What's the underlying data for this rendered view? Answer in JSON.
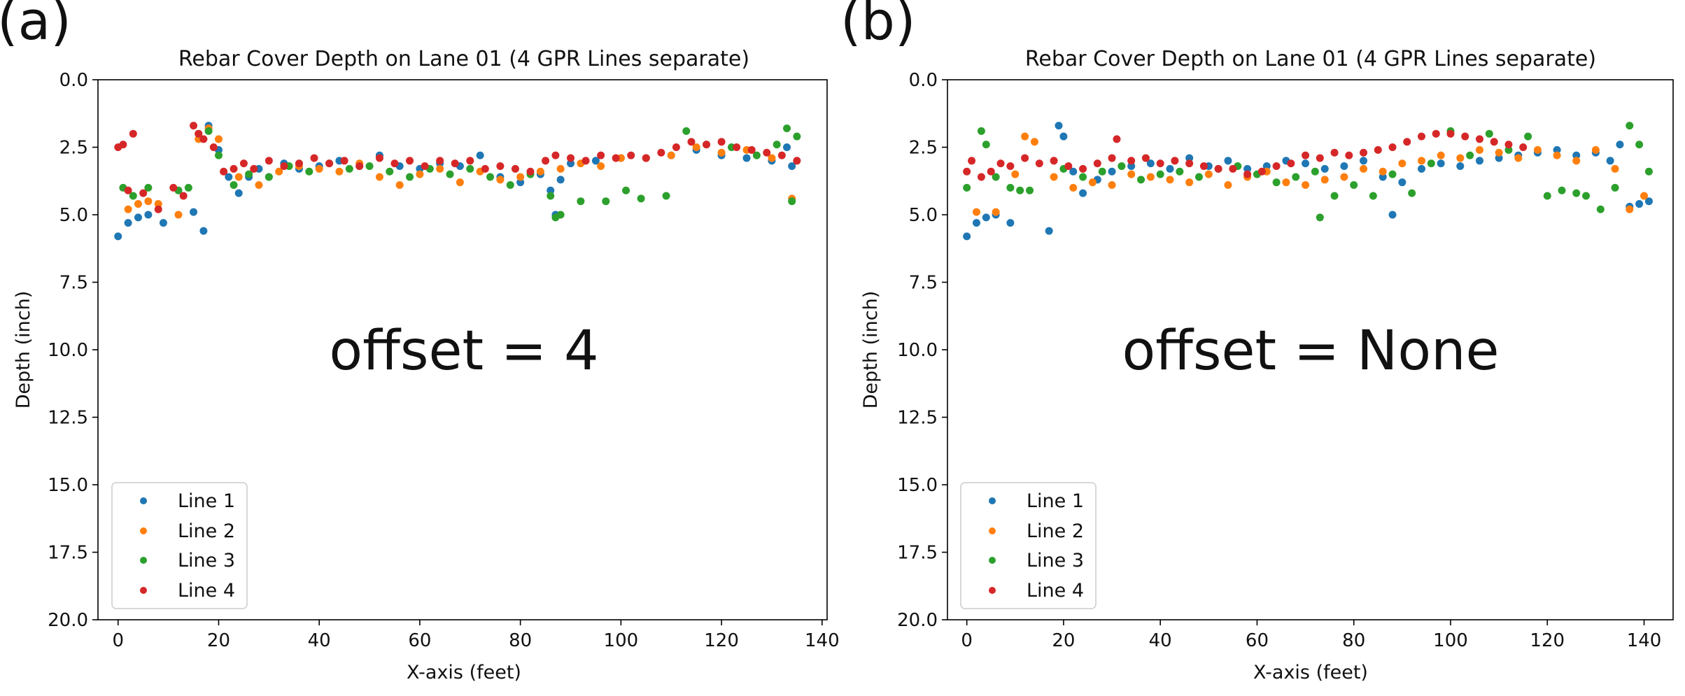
{
  "panels": [
    {
      "panel_label": "(a)",
      "annotation": "offset = 4",
      "title": "Rebar Cover Depth on Lane 01 (4 GPR Lines separate)",
      "xlabel": "X-axis (feet)",
      "ylabel": "Depth (inch)",
      "legend_location": "lower-left",
      "legend": [
        "Line 1",
        "Line 2",
        "Line 3",
        "Line 4"
      ]
    },
    {
      "panel_label": "(b)",
      "annotation": "offset = None",
      "title": "Rebar Cover Depth on Lane 01 (4 GPR Lines separate)",
      "xlabel": "X-axis (feet)",
      "ylabel": "Depth (inch)",
      "legend_location": "lower-left",
      "legend": [
        "Line 1",
        "Line 2",
        "Line 3",
        "Line 4"
      ]
    }
  ],
  "colors": {
    "line1": "#1f77b4",
    "line2": "#ff7f0e",
    "line3": "#2ca02c",
    "line4": "#d62728"
  },
  "chart_data": [
    {
      "type": "scatter",
      "title": "Rebar Cover Depth on Lane 01 (4 GPR Lines separate)",
      "xlabel": "X-axis (feet)",
      "ylabel": "Depth (inch)",
      "xlim": [
        -4,
        141
      ],
      "ylim": [
        20,
        0
      ],
      "y_inverted": true,
      "xticks": [
        0,
        20,
        40,
        60,
        80,
        100,
        120,
        140
      ],
      "yticks": [
        0.0,
        2.5,
        5.0,
        7.5,
        10.0,
        12.5,
        15.0,
        17.5,
        20.0
      ],
      "grid": false,
      "legend": "lower-left",
      "series": [
        {
          "name": "Line 1",
          "color": "#1f77b4",
          "x": [
            0,
            2,
            4,
            6,
            9,
            15,
            17,
            18,
            20,
            22,
            24,
            26,
            28,
            30,
            33,
            36,
            40,
            44,
            48,
            52,
            56,
            60,
            64,
            68,
            72,
            76,
            80,
            84,
            86,
            87,
            88,
            90,
            95,
            100,
            105,
            110,
            115,
            120,
            125,
            130,
            133,
            134
          ],
          "y": [
            5.8,
            5.3,
            5.1,
            5.0,
            5.3,
            4.9,
            5.6,
            1.7,
            2.6,
            3.6,
            4.2,
            3.6,
            3.3,
            3.6,
            3.1,
            3.3,
            3.2,
            3.0,
            3.2,
            2.8,
            3.2,
            3.3,
            3.1,
            3.2,
            2.8,
            3.6,
            3.8,
            3.5,
            4.1,
            5.0,
            3.7,
            3.1,
            3.0,
            2.9,
            2.9,
            2.8,
            2.6,
            2.8,
            2.9,
            3.0,
            2.5,
            3.2
          ]
        },
        {
          "name": "Line 2",
          "color": "#ff7f0e",
          "x": [
            2,
            4,
            6,
            8,
            12,
            16,
            18,
            20,
            24,
            28,
            32,
            36,
            40,
            44,
            48,
            52,
            56,
            60,
            64,
            68,
            72,
            76,
            80,
            84,
            88,
            92,
            96,
            100,
            105,
            110,
            115,
            120,
            125,
            130,
            134
          ],
          "y": [
            4.8,
            4.6,
            4.5,
            4.6,
            5.0,
            2.2,
            1.8,
            2.2,
            3.6,
            3.9,
            3.4,
            3.2,
            3.3,
            3.4,
            3.1,
            3.6,
            3.9,
            3.5,
            3.3,
            3.8,
            3.4,
            3.7,
            3.6,
            3.4,
            3.3,
            3.1,
            3.2,
            2.9,
            2.9,
            2.8,
            2.5,
            2.7,
            2.6,
            2.9,
            4.4
          ]
        },
        {
          "name": "Line 3",
          "color": "#2ca02c",
          "x": [
            1,
            3,
            6,
            12,
            14,
            16,
            18,
            20,
            23,
            26,
            30,
            34,
            38,
            42,
            46,
            50,
            54,
            58,
            62,
            66,
            70,
            74,
            78,
            82,
            86,
            87,
            88,
            92,
            97,
            101,
            104,
            109,
            113,
            117,
            122,
            127,
            131,
            133,
            134,
            135
          ],
          "y": [
            4.0,
            4.3,
            4.0,
            4.1,
            4.0,
            2.0,
            1.9,
            2.8,
            3.9,
            3.5,
            3.6,
            3.2,
            3.4,
            3.1,
            3.3,
            3.2,
            3.4,
            3.6,
            3.3,
            3.5,
            3.3,
            3.6,
            3.9,
            3.5,
            4.3,
            5.1,
            5.0,
            4.5,
            4.5,
            4.1,
            4.4,
            4.3,
            1.9,
            2.4,
            2.5,
            2.8,
            2.4,
            1.8,
            4.5,
            2.1
          ]
        },
        {
          "name": "Line 4",
          "color": "#d62728",
          "x": [
            0,
            1,
            2,
            3,
            5,
            8,
            11,
            13,
            15,
            16,
            17,
            19,
            21,
            23,
            25,
            27,
            30,
            33,
            36,
            39,
            42,
            45,
            48,
            52,
            55,
            58,
            61,
            64,
            67,
            70,
            73,
            76,
            79,
            82,
            85,
            87,
            90,
            93,
            96,
            99,
            102,
            105,
            108,
            111,
            114,
            117,
            120,
            123,
            126,
            129,
            132,
            135
          ],
          "y": [
            2.5,
            2.4,
            4.1,
            2.0,
            4.2,
            4.8,
            4.0,
            4.3,
            1.7,
            2.0,
            2.2,
            2.5,
            3.4,
            3.3,
            3.1,
            3.3,
            3.0,
            3.2,
            3.1,
            2.9,
            3.1,
            3.0,
            3.2,
            2.9,
            3.1,
            3.0,
            3.2,
            3.0,
            3.1,
            3.0,
            3.3,
            3.2,
            3.3,
            3.4,
            3.0,
            2.8,
            2.9,
            3.0,
            2.8,
            2.9,
            2.8,
            2.9,
            2.7,
            2.5,
            2.3,
            2.4,
            2.3,
            2.5,
            2.6,
            2.7,
            2.8,
            3.0
          ]
        }
      ]
    },
    {
      "type": "scatter",
      "title": "Rebar Cover Depth on Lane 01 (4 GPR Lines separate)",
      "xlabel": "X-axis (feet)",
      "ylabel": "Depth (inch)",
      "xlim": [
        -4,
        146
      ],
      "ylim": [
        20,
        0
      ],
      "y_inverted": true,
      "xticks": [
        0,
        20,
        40,
        60,
        80,
        100,
        120,
        140
      ],
      "yticks": [
        0.0,
        2.5,
        5.0,
        7.5,
        10.0,
        12.5,
        15.0,
        17.5,
        20.0
      ],
      "grid": false,
      "legend": "lower-left",
      "series": [
        {
          "name": "Line 1",
          "color": "#1f77b4",
          "x": [
            0,
            2,
            4,
            6,
            9,
            17,
            19,
            20,
            22,
            24,
            27,
            30,
            34,
            38,
            42,
            46,
            50,
            54,
            58,
            62,
            66,
            70,
            74,
            78,
            82,
            86,
            88,
            90,
            94,
            98,
            102,
            106,
            110,
            114,
            118,
            122,
            126,
            130,
            133,
            135,
            137,
            139,
            141
          ],
          "y": [
            5.8,
            5.3,
            5.1,
            5.0,
            5.3,
            5.6,
            1.7,
            2.1,
            3.4,
            4.2,
            3.7,
            3.4,
            3.2,
            3.1,
            3.3,
            2.9,
            3.2,
            3.0,
            3.3,
            3.2,
            3.0,
            3.1,
            3.3,
            3.2,
            3.0,
            3.6,
            5.0,
            3.8,
            3.3,
            3.1,
            3.2,
            3.0,
            2.9,
            2.8,
            2.7,
            2.6,
            2.8,
            2.7,
            3.0,
            2.4,
            4.7,
            4.6,
            4.5
          ]
        },
        {
          "name": "Line 2",
          "color": "#ff7f0e",
          "x": [
            2,
            6,
            10,
            12,
            14,
            18,
            22,
            26,
            30,
            34,
            38,
            42,
            46,
            50,
            54,
            58,
            62,
            66,
            70,
            74,
            78,
            82,
            86,
            90,
            94,
            98,
            102,
            106,
            110,
            114,
            118,
            122,
            126,
            130,
            134,
            137,
            140
          ],
          "y": [
            4.9,
            4.9,
            3.5,
            2.1,
            2.3,
            3.6,
            4.0,
            3.8,
            3.9,
            3.5,
            3.6,
            3.7,
            3.8,
            3.5,
            3.9,
            3.6,
            3.4,
            3.8,
            3.9,
            3.7,
            3.6,
            3.3,
            3.4,
            3.1,
            3.0,
            2.8,
            2.9,
            2.6,
            2.7,
            2.9,
            2.6,
            2.8,
            3.0,
            2.6,
            3.3,
            4.8,
            4.3
          ]
        },
        {
          "name": "Line 3",
          "color": "#2ca02c",
          "x": [
            0,
            3,
            4,
            6,
            9,
            11,
            13,
            20,
            24,
            28,
            32,
            36,
            40,
            44,
            48,
            52,
            56,
            60,
            64,
            68,
            72,
            73,
            76,
            80,
            84,
            88,
            92,
            96,
            100,
            104,
            108,
            112,
            116,
            120,
            123,
            126,
            128,
            131,
            134,
            137,
            139,
            141
          ],
          "y": [
            4.0,
            1.9,
            2.4,
            3.6,
            4.0,
            4.1,
            4.1,
            3.3,
            3.6,
            3.4,
            3.2,
            3.7,
            3.5,
            3.4,
            3.6,
            3.3,
            3.2,
            3.5,
            3.8,
            3.6,
            3.4,
            5.1,
            4.3,
            3.9,
            4.3,
            3.5,
            4.2,
            3.1,
            1.9,
            2.8,
            2.0,
            2.6,
            2.1,
            4.3,
            4.1,
            4.2,
            4.3,
            4.8,
            4.0,
            1.7,
            2.4,
            3.4
          ]
        },
        {
          "name": "Line 4",
          "color": "#d62728",
          "x": [
            0,
            1,
            3,
            5,
            7,
            9,
            12,
            15,
            18,
            21,
            24,
            27,
            30,
            31,
            34,
            37,
            40,
            43,
            46,
            49,
            52,
            55,
            58,
            61,
            64,
            67,
            70,
            73,
            76,
            79,
            82,
            85,
            88,
            91,
            94,
            97,
            100,
            103,
            106,
            109,
            112,
            115
          ],
          "y": [
            3.4,
            3.0,
            3.6,
            3.4,
            3.1,
            3.2,
            2.9,
            3.1,
            3.0,
            3.2,
            3.3,
            3.1,
            2.9,
            2.2,
            3.0,
            2.9,
            3.1,
            3.0,
            3.1,
            3.2,
            3.3,
            3.3,
            3.5,
            3.4,
            3.2,
            3.1,
            2.8,
            2.9,
            2.7,
            2.8,
            2.7,
            2.6,
            2.5,
            2.3,
            2.1,
            2.0,
            2.0,
            2.1,
            2.2,
            2.3,
            2.4,
            2.5
          ]
        }
      ]
    }
  ]
}
